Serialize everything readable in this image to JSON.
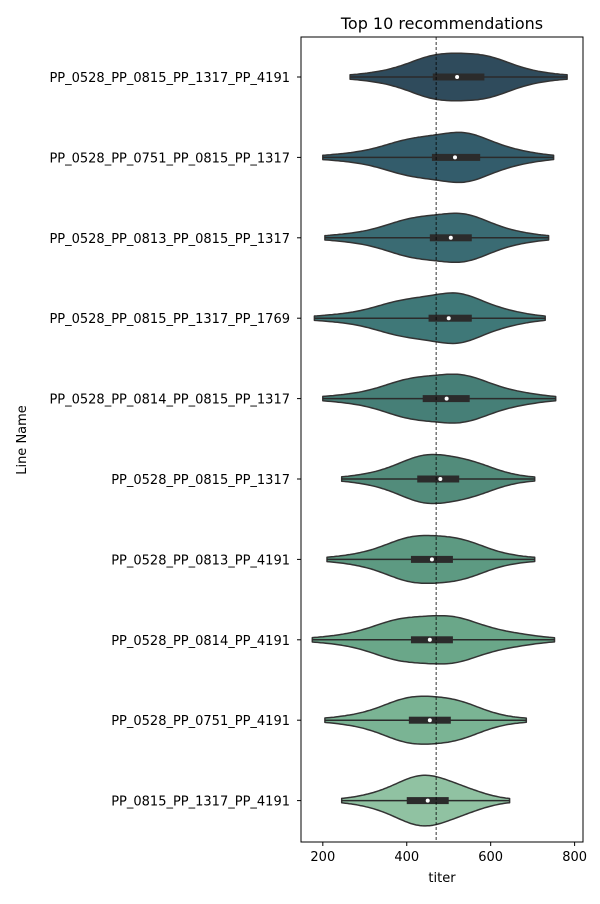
{
  "chart_data": {
    "type": "violin",
    "title": "Top 10 recommendations",
    "xlabel": "titer",
    "ylabel": "Line Name",
    "xlim": [
      148,
      820
    ],
    "xticks": [
      200,
      400,
      600,
      800
    ],
    "reference_line_x": 470,
    "categories": [
      "PP_0528_PP_0815_PP_1317_PP_4191",
      "PP_0528_PP_0751_PP_0815_PP_1317",
      "PP_0528_PP_0813_PP_0815_PP_1317",
      "PP_0528_PP_0815_PP_1317_PP_1769",
      "PP_0528_PP_0814_PP_0815_PP_1317",
      "PP_0528_PP_0815_PP_1317",
      "PP_0528_PP_0813_PP_4191",
      "PP_0528_PP_0814_PP_4191",
      "PP_0528_PP_0751_PP_4191",
      "PP_0815_PP_1317_PP_4191"
    ],
    "violins": [
      {
        "min": 265,
        "q1": 462,
        "median": 520,
        "q3": 585,
        "max": 782,
        "peak": 525,
        "color": "#2f4b5c"
      },
      {
        "min": 200,
        "q1": 460,
        "median": 515,
        "q3": 575,
        "max": 750,
        "peak": 510,
        "color": "#335c6b"
      },
      {
        "min": 205,
        "q1": 455,
        "median": 505,
        "q3": 555,
        "max": 738,
        "peak": 500,
        "color": "#3a6b73"
      },
      {
        "min": 180,
        "q1": 452,
        "median": 500,
        "q3": 555,
        "max": 730,
        "peak": 498,
        "color": "#3f7878"
      },
      {
        "min": 200,
        "q1": 438,
        "median": 495,
        "q3": 550,
        "max": 755,
        "peak": 490,
        "color": "#467f77"
      },
      {
        "min": 245,
        "q1": 425,
        "median": 480,
        "q3": 525,
        "max": 705,
        "peak": 478,
        "color": "#528c7b"
      },
      {
        "min": 210,
        "q1": 410,
        "median": 460,
        "q3": 510,
        "max": 705,
        "peak": 462,
        "color": "#5d9a82"
      },
      {
        "min": 175,
        "q1": 410,
        "median": 455,
        "q3": 510,
        "max": 752,
        "peak": 455,
        "color": "#6aa789"
      },
      {
        "min": 205,
        "q1": 405,
        "median": 455,
        "q3": 505,
        "max": 685,
        "peak": 455,
        "color": "#7ab494"
      },
      {
        "min": 245,
        "q1": 400,
        "median": 450,
        "q3": 500,
        "max": 645,
        "peak": 452,
        "color": "#90c2a2"
      }
    ]
  }
}
